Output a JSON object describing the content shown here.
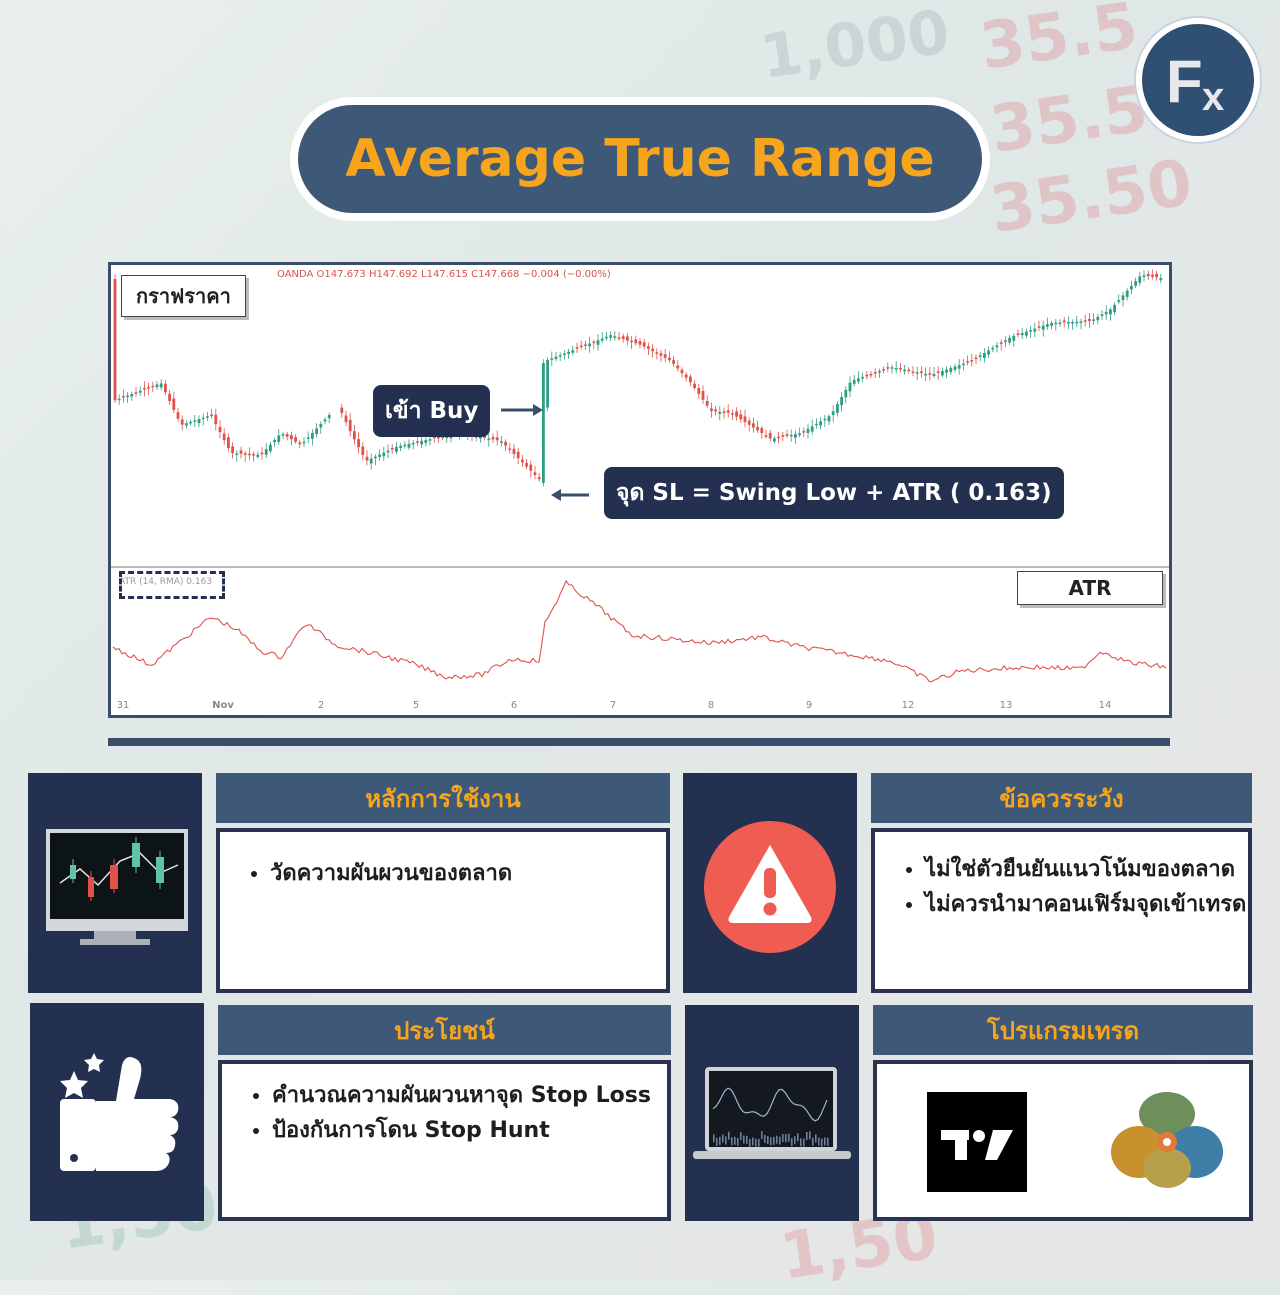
{
  "title": "Average True Range",
  "logo_text": "Fx",
  "background": {
    "numbers": [
      "1,000",
      "35.5",
      "35.50",
      "35.50",
      "1,50",
      "1,50"
    ]
  },
  "chart": {
    "price_label": "กราฟราคา",
    "ohlc_header": "OANDA O147.673 H147.692 L147.615 C147.668 −0.004 (−0.00%)",
    "buy_label": "เข้า Buy",
    "sl_label": "จุด SL = Swing Low + ATR ( 0.163)",
    "atr_label": "ATR",
    "atr_indicator": "ATR (14, RMA) 0.163",
    "x_ticks": [
      "31",
      "Nov",
      "2",
      "5",
      "6",
      "7",
      "8",
      "9",
      "12",
      "13",
      "14"
    ]
  },
  "cards": {
    "usage": {
      "header": "หลักการใช้งาน",
      "items": [
        "วัดความผันผวนของตลาด"
      ]
    },
    "caution": {
      "header": "ข้อควรระวัง",
      "items": [
        "ไม่ใช่ตัวยืนยันแนวโน้มของตลาด",
        "ไม่ควรนำมาคอนเฟิร์มจุดเข้าเทรด"
      ]
    },
    "benefit": {
      "header": "ประโยชน์",
      "items": [
        "คำนวณความผันผวนหาจุด Stop Loss",
        "ป้องกันการโดน Stop Hunt"
      ]
    },
    "programs": {
      "header": "โปรแกรมเทรด",
      "items": [
        "TradingView",
        "MetaTrader"
      ]
    }
  },
  "colors": {
    "navy": "#24304f",
    "header_blue": "#3e5878",
    "accent_orange": "#f7a51c",
    "candle_up": "#2e9e83",
    "candle_down": "#e0524a",
    "atr_line": "#e0524a",
    "warning": "#ef5c52"
  },
  "icons": [
    "fx-logo-icon",
    "monitor-chart-icon",
    "warning-icon",
    "thumbs-up-icon",
    "laptop-chart-icon",
    "tradingview-logo-icon",
    "metatrader-logo-icon"
  ]
}
